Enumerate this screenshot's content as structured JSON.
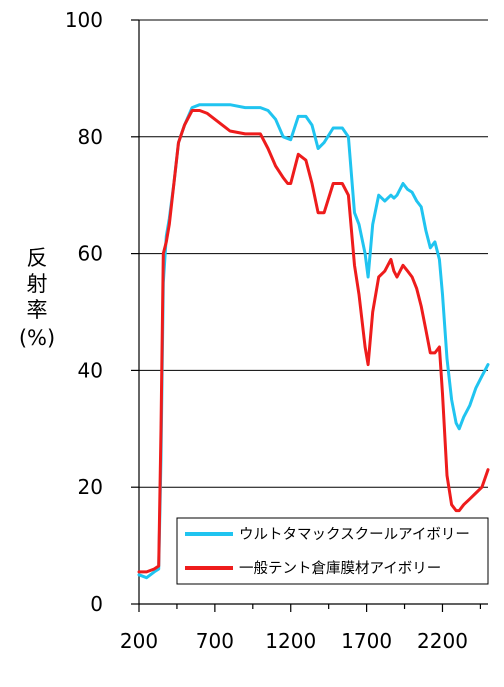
{
  "chart_data": {
    "type": "line",
    "ylabel": [
      "反",
      "射",
      "率",
      "(%)"
    ],
    "xlim": [
      200,
      2500
    ],
    "ylim": [
      0,
      100
    ],
    "xticks": [
      200,
      700,
      1200,
      1700,
      2200
    ],
    "yticks": [
      0,
      20,
      40,
      60,
      80,
      100
    ],
    "grid": "horizontal",
    "legend_position": "bottom-right",
    "series": [
      {
        "name": "ウルトタマックスクールアイボリー",
        "color": "#20c4f0",
        "x": [
          200,
          250,
          300,
          330,
          345,
          360,
          380,
          400,
          430,
          460,
          500,
          550,
          600,
          650,
          700,
          800,
          900,
          1000,
          1050,
          1100,
          1150,
          1200,
          1250,
          1300,
          1340,
          1380,
          1420,
          1480,
          1540,
          1580,
          1620,
          1650,
          1690,
          1710,
          1740,
          1780,
          1820,
          1860,
          1880,
          1900,
          1940,
          1970,
          2000,
          2030,
          2060,
          2090,
          2120,
          2150,
          2180,
          2200,
          2230,
          2260,
          2290,
          2310,
          2340,
          2380,
          2420,
          2460,
          2500
        ],
        "values": [
          5,
          4.5,
          5.5,
          6,
          25,
          55,
          63,
          66,
          72,
          79,
          82,
          85,
          85.5,
          85.5,
          85.5,
          85.5,
          85,
          85,
          84.5,
          83,
          80,
          79.5,
          83.5,
          83.5,
          82,
          78,
          79,
          81.5,
          81.5,
          80,
          67,
          65,
          60,
          56,
          65,
          70,
          69,
          70,
          69.5,
          70,
          72,
          71,
          70.5,
          69,
          68,
          64,
          61,
          62,
          59,
          53,
          42,
          35,
          31,
          30,
          32,
          34,
          37,
          39,
          41
        ]
      },
      {
        "name": "一般テント倉庫膜材アイボリー",
        "color": "#ee1c1c",
        "x": [
          200,
          250,
          300,
          330,
          345,
          360,
          380,
          400,
          430,
          460,
          500,
          550,
          600,
          650,
          700,
          800,
          900,
          1000,
          1050,
          1100,
          1150,
          1180,
          1200,
          1250,
          1300,
          1340,
          1380,
          1420,
          1480,
          1540,
          1580,
          1620,
          1650,
          1690,
          1710,
          1740,
          1780,
          1820,
          1860,
          1880,
          1900,
          1940,
          1970,
          2000,
          2030,
          2060,
          2090,
          2120,
          2150,
          2180,
          2200,
          2230,
          2260,
          2290,
          2310,
          2340,
          2380,
          2420,
          2460,
          2500
        ],
        "values": [
          5.5,
          5.5,
          6,
          6.5,
          30,
          60,
          62,
          65,
          72,
          79,
          82,
          84.5,
          84.5,
          84,
          83,
          81,
          80.5,
          80.5,
          78,
          75,
          73,
          72,
          72,
          77,
          76,
          72,
          67,
          67,
          72,
          72,
          70,
          58,
          53,
          44,
          41,
          50,
          56,
          57,
          59,
          57,
          56,
          58,
          57,
          56,
          54,
          51,
          47,
          43,
          43,
          44,
          36,
          22,
          17,
          16,
          16,
          17,
          18,
          19,
          20,
          23
        ]
      }
    ]
  }
}
